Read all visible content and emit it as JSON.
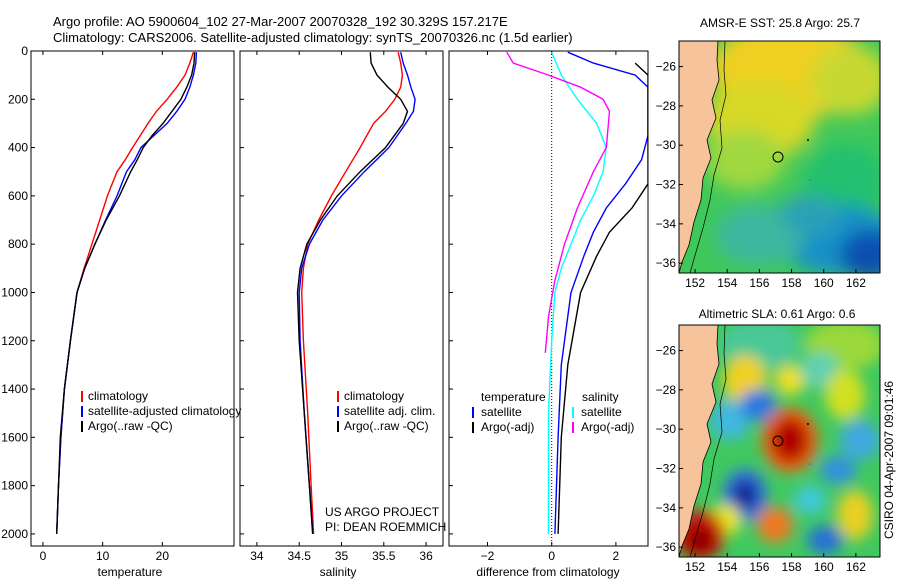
{
  "header": {
    "line1": "Argo profile: AO 5900604_102 27-Mar-2007 20070328_192 30.329S 157.217E",
    "line2": "Climatology: CARS2006. Satellite-adjusted climatology: synTS_20070326.nc (1.5d earlier)"
  },
  "colors": {
    "climatology": "#ff0000",
    "satellite": "#0000ff",
    "argo": "#000000",
    "argo_adj_salinity": "#ff00ff",
    "satellite_salinity": "#00ffff",
    "land": "#f7c39a"
  },
  "chart_data": [
    {
      "id": "temperature",
      "type": "line",
      "xlabel": "temperature",
      "ylabel": "",
      "xlim": [
        -2,
        32
      ],
      "ylim": [
        2050,
        0
      ],
      "xticks": [
        0,
        10,
        20
      ],
      "yticks": [
        0,
        200,
        400,
        600,
        800,
        1000,
        1200,
        1400,
        1600,
        1800,
        2000
      ],
      "legend": {
        "placement": "lower-right",
        "entries": [
          {
            "label": "climatology",
            "color": "#ff0000"
          },
          {
            "label": "satellite-adjusted climatology",
            "color": "#0000ff"
          },
          {
            "label": "Argo(..raw -QC)",
            "color": "#000000"
          }
        ]
      },
      "series": [
        {
          "name": "climatology",
          "color": "#ff0000",
          "x": [
            25.2,
            24.6,
            23.8,
            22.4,
            20.8,
            19.0,
            17.6,
            16.3,
            15.0,
            13.8,
            12.4,
            10.8,
            9.5,
            8.2,
            6.9,
            5.7,
            4.6,
            3.6,
            3.0,
            2.6,
            2.3
          ],
          "y": [
            5,
            50,
            100,
            150,
            200,
            250,
            300,
            350,
            400,
            450,
            500,
            600,
            700,
            800,
            900,
            1000,
            1200,
            1400,
            1600,
            1800,
            2000
          ]
        },
        {
          "name": "satellite-adjusted climatology",
          "color": "#0000ff",
          "x": [
            25.7,
            25.6,
            25.2,
            24.6,
            23.8,
            22.4,
            20.8,
            18.6,
            16.4,
            15.4,
            14.0,
            12.4,
            10.5,
            8.7,
            7.0,
            5.7,
            4.6,
            3.6,
            3.0,
            2.6,
            2.3
          ],
          "y": [
            5,
            50,
            100,
            150,
            200,
            250,
            300,
            350,
            400,
            450,
            500,
            600,
            700,
            800,
            900,
            1000,
            1200,
            1400,
            1600,
            1800,
            2000
          ]
        },
        {
          "name": "Argo(..raw -QC)",
          "color": "#000000",
          "x": [
            25.4,
            25.3,
            24.9,
            24.1,
            23.1,
            21.6,
            20.1,
            18.3,
            16.8,
            15.8,
            14.7,
            12.8,
            10.6,
            8.7,
            7.0,
            5.7,
            4.6,
            3.6,
            2.9,
            2.6,
            2.3
          ],
          "y": [
            5,
            50,
            100,
            150,
            200,
            250,
            300,
            350,
            400,
            450,
            500,
            600,
            700,
            800,
            900,
            1000,
            1200,
            1400,
            1600,
            1800,
            2000
          ]
        }
      ]
    },
    {
      "id": "salinity",
      "type": "line",
      "xlabel": "salinity",
      "ylabel": "",
      "xlim": [
        33.8,
        36.2
      ],
      "ylim": [
        2050,
        0
      ],
      "xticks": [
        34,
        34.5,
        35,
        35.5,
        36
      ],
      "yticks": [],
      "legend": {
        "placement": "lower-right",
        "entries": [
          {
            "label": "climatology",
            "color": "#ff0000"
          },
          {
            "label": "satellite adj. clim.",
            "color": "#0000ff"
          },
          {
            "label": "Argo(..raw -QC)",
            "color": "#000000"
          }
        ]
      },
      "annotation": [
        "US ARGO PROJECT",
        "PI: DEAN ROEMMICH"
      ],
      "series": [
        {
          "name": "climatology",
          "color": "#ff0000",
          "x": [
            35.67,
            35.7,
            35.72,
            35.7,
            35.63,
            35.52,
            35.38,
            35.22,
            35.05,
            34.88,
            34.73,
            34.6,
            34.55,
            34.53,
            34.55,
            34.6,
            34.64,
            34.67
          ],
          "y": [
            5,
            50,
            100,
            150,
            200,
            250,
            300,
            400,
            500,
            600,
            700,
            800,
            900,
            1000,
            1200,
            1500,
            1800,
            2000
          ]
        },
        {
          "name": "satellite adj. clim.",
          "color": "#0000ff",
          "x": [
            35.7,
            35.73,
            35.78,
            35.82,
            35.87,
            35.85,
            35.76,
            35.56,
            35.27,
            35.0,
            34.78,
            34.62,
            34.53,
            34.5,
            34.51,
            34.56,
            34.62,
            34.66
          ],
          "y": [
            5,
            50,
            100,
            150,
            200,
            250,
            300,
            400,
            500,
            600,
            700,
            800,
            900,
            1000,
            1200,
            1500,
            1800,
            2000
          ]
        },
        {
          "name": "Argo(..raw -QC)",
          "color": "#000000",
          "x": [
            35.34,
            35.35,
            35.42,
            35.55,
            35.7,
            35.78,
            35.73,
            35.52,
            35.22,
            34.95,
            34.75,
            34.59,
            34.51,
            34.48,
            34.5,
            34.56,
            34.62,
            34.66
          ],
          "y": [
            5,
            50,
            100,
            150,
            200,
            250,
            300,
            400,
            500,
            600,
            700,
            800,
            900,
            1000,
            1200,
            1500,
            1800,
            2000
          ]
        }
      ]
    },
    {
      "id": "difference",
      "type": "line",
      "xlabel": "difference from climatology",
      "ylabel": "",
      "xlim": [
        -3.2,
        3.0
      ],
      "ylim": [
        2050,
        0
      ],
      "xticks": [
        -2,
        0,
        2
      ],
      "yticks": [],
      "zero_line": "dotted",
      "legend": {
        "placement": "lower-center",
        "columns": [
          {
            "heading": "temperature",
            "entries": [
              {
                "label": "satellite",
                "color": "#0000ff"
              },
              {
                "label": "Argo(-adj)",
                "color": "#000000"
              }
            ]
          },
          {
            "heading": "salinity",
            "entries": [
              {
                "label": "satellite",
                "color": "#00ffff"
              },
              {
                "label": "Argo(-adj)",
                "color": "#ff00ff"
              }
            ]
          }
        ]
      },
      "series": [
        {
          "name": "temperature satellite",
          "color": "#0000ff",
          "x": [
            0.5,
            1.3,
            2.6,
            3.0,
            3.0,
            3.0,
            2.8,
            2.3,
            1.7,
            1.3,
            1.0,
            0.6,
            0.3,
            0.2,
            0.1
          ],
          "y": [
            5,
            50,
            100,
            150,
            250,
            350,
            450,
            550,
            650,
            750,
            850,
            1000,
            1300,
            1600,
            2000
          ]
        },
        {
          "name": "temperature Argo(-adj)",
          "color": "#000000",
          "x": [
            2.6,
            3.0,
            3.0,
            3.0,
            3.0,
            3.0,
            3.0,
            2.5,
            1.8,
            1.4,
            0.9,
            0.5,
            0.3,
            0.2
          ],
          "y": [
            50,
            100,
            150,
            250,
            350,
            450,
            550,
            650,
            750,
            850,
            1000,
            1300,
            1600,
            2000
          ]
        },
        {
          "name": "salinity satellite",
          "color": "#00ffff",
          "x": [
            0.0,
            0.3,
            0.8,
            1.4,
            1.7,
            1.6,
            1.3,
            0.9,
            0.6,
            0.3,
            0.1,
            0.0,
            -0.1,
            -0.1
          ],
          "y": [
            5,
            100,
            200,
            300,
            400,
            500,
            600,
            700,
            800,
            900,
            1000,
            1200,
            1500,
            2000
          ]
        },
        {
          "name": "salinity Argo(-adj)",
          "color": "#ff00ff",
          "x": [
            -1.4,
            -1.2,
            -0.1,
            0.9,
            1.6,
            1.8,
            1.7,
            1.3,
            0.8,
            0.4,
            0.1,
            -0.1,
            -0.2
          ],
          "y": [
            5,
            50,
            100,
            150,
            200,
            250,
            400,
            500,
            650,
            800,
            950,
            1100,
            1250
          ]
        }
      ]
    },
    {
      "id": "amsre-sst-map",
      "type": "heatmap",
      "title": "AMSR-E SST: 25.8 Argo: 25.7",
      "xlim": [
        151,
        163.5
      ],
      "ylim": [
        -36.5,
        -24.7
      ],
      "xticks": [
        152,
        154,
        156,
        158,
        160,
        162
      ],
      "yticks": [
        -26,
        -28,
        -30,
        -32,
        -34,
        -36
      ],
      "colormap": "jet",
      "float_position": {
        "lon": 157.217,
        "lat": -30.329
      }
    },
    {
      "id": "altimetric-sla-map",
      "type": "heatmap",
      "title": "Altimetric SLA: 0.61 Argo: 0.6",
      "xlim": [
        151,
        163.5
      ],
      "ylim": [
        -36.5,
        -24.7
      ],
      "xticks": [
        152,
        154,
        156,
        158,
        160,
        162
      ],
      "yticks": [
        -26,
        -28,
        -30,
        -32,
        -34,
        -36
      ],
      "colormap": "jet",
      "float_position": {
        "lon": 157.217,
        "lat": -30.329
      }
    }
  ],
  "credit": "CSIRO 04-Apr-2007 09:01:46"
}
